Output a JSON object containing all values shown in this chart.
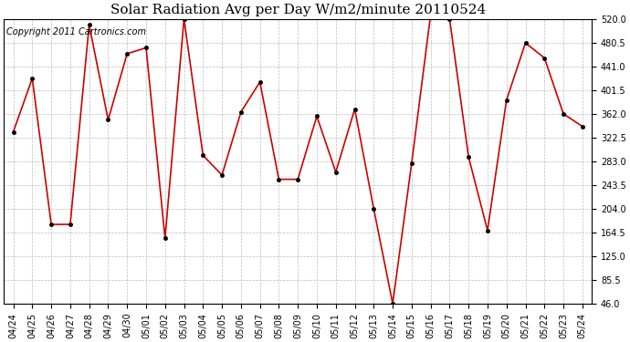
{
  "title": "Solar Radiation Avg per Day W/m2/minute 20110524",
  "copyright": "Copyright 2011 Cartronics.com",
  "dates": [
    "04/24",
    "04/25",
    "04/26",
    "04/27",
    "04/28",
    "04/29",
    "04/30",
    "05/01",
    "05/02",
    "05/03",
    "05/04",
    "05/05",
    "05/06",
    "05/07",
    "05/08",
    "05/09",
    "05/10",
    "05/11",
    "05/12",
    "05/13",
    "05/14",
    "05/15",
    "05/16",
    "05/17",
    "05/18",
    "05/19",
    "05/20",
    "05/21",
    "05/22",
    "05/23",
    "05/24"
  ],
  "values": [
    332,
    421,
    178,
    178,
    510,
    352,
    462,
    472,
    155,
    520,
    293,
    260,
    365,
    415,
    253,
    253,
    358,
    265,
    370,
    204,
    46,
    280,
    527,
    520,
    290,
    168,
    385,
    480,
    455,
    362,
    341
  ],
  "yticks": [
    46.0,
    85.5,
    125.0,
    164.5,
    204.0,
    243.5,
    283.0,
    322.5,
    362.0,
    401.5,
    441.0,
    480.5,
    520.0
  ],
  "ylim_min": 46.0,
  "ylim_max": 520.0,
  "line_color": "#cc0000",
  "marker_color": "#000000",
  "bg_color": "#ffffff",
  "grid_color": "#bbbbbb",
  "title_fontsize": 11,
  "copyright_fontsize": 7,
  "tick_fontsize": 7,
  "fig_width": 6.9,
  "fig_height": 3.75,
  "dpi": 100
}
